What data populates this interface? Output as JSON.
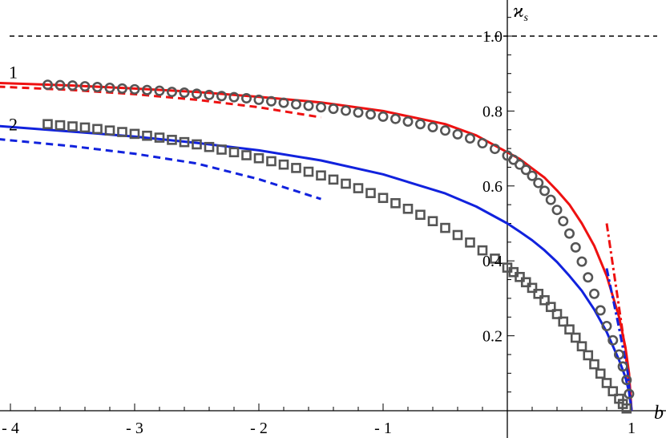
{
  "chart_data": {
    "type": "line",
    "title": "",
    "xlabel": "b",
    "ylabel": "ϰ_s",
    "xlim": [
      -4.05,
      1.1
    ],
    "ylim": [
      0,
      1.05
    ],
    "x_ticks": [
      {
        "value": -4,
        "label": "- 4"
      },
      {
        "value": -3,
        "label": "- 3"
      },
      {
        "value": -2,
        "label": "- 2"
      },
      {
        "value": -1,
        "label": "- 1"
      },
      {
        "value": 1,
        "label": "1"
      }
    ],
    "y_ticks": [
      {
        "value": 0.2,
        "label": "0.2"
      },
      {
        "value": 0.4,
        "label": "0.4"
      },
      {
        "value": 0.6,
        "label": "0.6"
      },
      {
        "value": 0.8,
        "label": "0.8"
      },
      {
        "value": 1.0,
        "label": "1.0"
      }
    ],
    "curve_labels": [
      {
        "text": "1",
        "x": -4,
        "y": 0.905
      },
      {
        "text": "2",
        "x": -4,
        "y": 0.765
      }
    ],
    "reference_line": {
      "y": 1.0,
      "style": "dashed",
      "color": "#000000"
    },
    "series": [
      {
        "style": "solid",
        "color": "#ee1111",
        "x": [
          -4.1,
          -3.5,
          -3.0,
          -2.5,
          -2.0,
          -1.5,
          -1.0,
          -0.5,
          -0.25,
          0.0,
          0.1,
          0.2,
          0.3,
          0.4,
          0.5,
          0.6,
          0.7,
          0.8,
          0.9,
          0.95,
          0.98,
          1.0
        ],
        "y": [
          0.875,
          0.868,
          0.86,
          0.851,
          0.838,
          0.823,
          0.8,
          0.765,
          0.735,
          0.69,
          0.672,
          0.647,
          0.622,
          0.588,
          0.55,
          0.5,
          0.44,
          0.36,
          0.25,
          0.17,
          0.1,
          0.0
        ]
      },
      {
        "style": "dashed",
        "color": "#ee1111",
        "x": [
          -4.1,
          -3.5,
          -3.0,
          -2.5,
          -2.0,
          -1.5
        ],
        "y": [
          0.865,
          0.856,
          0.845,
          0.83,
          0.81,
          0.783
        ]
      },
      {
        "style": "dashdot",
        "color": "#ee1111",
        "x": [
          0.8,
          0.88,
          0.95,
          1.0
        ],
        "y": [
          0.5,
          0.32,
          0.16,
          0.0
        ]
      },
      {
        "style": "solid",
        "color": "#1122dd",
        "x": [
          -4.1,
          -3.5,
          -3.0,
          -2.5,
          -2.0,
          -1.5,
          -1.0,
          -0.5,
          -0.25,
          0.0,
          0.1,
          0.2,
          0.3,
          0.4,
          0.5,
          0.6,
          0.7,
          0.8,
          0.9,
          0.95,
          0.98,
          1.0
        ],
        "y": [
          0.76,
          0.745,
          0.732,
          0.715,
          0.695,
          0.668,
          0.631,
          0.58,
          0.545,
          0.5,
          0.478,
          0.455,
          0.428,
          0.397,
          0.36,
          0.32,
          0.27,
          0.21,
          0.135,
          0.09,
          0.05,
          0.0
        ]
      },
      {
        "style": "dashed",
        "color": "#1122dd",
        "x": [
          -4.1,
          -3.5,
          -3.0,
          -2.5,
          -2.0,
          -1.5
        ],
        "y": [
          0.725,
          0.706,
          0.686,
          0.66,
          0.618,
          0.565
        ]
      },
      {
        "style": "dashdot",
        "color": "#1122dd",
        "x": [
          0.8,
          0.9,
          0.97,
          1.0
        ],
        "y": [
          0.38,
          0.22,
          0.1,
          0.0
        ]
      },
      {
        "style": "markers",
        "marker": "circle",
        "color": "#555555",
        "x": [
          -3.7,
          -3.6,
          -3.5,
          -3.4,
          -3.3,
          -3.2,
          -3.1,
          -3.0,
          -2.9,
          -2.8,
          -2.7,
          -2.6,
          -2.5,
          -2.4,
          -2.3,
          -2.2,
          -2.1,
          -2.0,
          -1.9,
          -1.8,
          -1.7,
          -1.6,
          -1.5,
          -1.4,
          -1.3,
          -1.2,
          -1.1,
          -1.0,
          -0.9,
          -0.8,
          -0.7,
          -0.6,
          -0.5,
          -0.4,
          -0.3,
          -0.2,
          -0.1,
          0.0,
          0.05,
          0.1,
          0.15,
          0.2,
          0.25,
          0.3,
          0.35,
          0.4,
          0.45,
          0.5,
          0.55,
          0.6,
          0.65,
          0.7,
          0.75,
          0.8,
          0.85,
          0.9,
          0.93,
          0.96,
          0.98
        ],
        "y": [
          0.87,
          0.869,
          0.868,
          0.866,
          0.864,
          0.862,
          0.86,
          0.858,
          0.856,
          0.854,
          0.851,
          0.849,
          0.846,
          0.843,
          0.84,
          0.837,
          0.834,
          0.83,
          0.826,
          0.822,
          0.818,
          0.814,
          0.81,
          0.806,
          0.801,
          0.796,
          0.791,
          0.785,
          0.779,
          0.772,
          0.765,
          0.757,
          0.748,
          0.738,
          0.727,
          0.714,
          0.699,
          0.681,
          0.67,
          0.657,
          0.643,
          0.627,
          0.608,
          0.587,
          0.563,
          0.536,
          0.506,
          0.473,
          0.436,
          0.398,
          0.356,
          0.312,
          0.268,
          0.226,
          0.188,
          0.15,
          0.118,
          0.082,
          0.045
        ]
      },
      {
        "style": "markers",
        "marker": "square",
        "color": "#555555",
        "x": [
          -3.7,
          -3.6,
          -3.5,
          -3.4,
          -3.3,
          -3.2,
          -3.1,
          -3.0,
          -2.9,
          -2.8,
          -2.7,
          -2.6,
          -2.5,
          -2.4,
          -2.3,
          -2.2,
          -2.1,
          -2.0,
          -1.9,
          -1.8,
          -1.7,
          -1.6,
          -1.5,
          -1.4,
          -1.3,
          -1.2,
          -1.1,
          -1.0,
          -0.9,
          -0.8,
          -0.7,
          -0.6,
          -0.5,
          -0.4,
          -0.3,
          -0.2,
          -0.1,
          0.0,
          0.05,
          0.1,
          0.15,
          0.2,
          0.25,
          0.3,
          0.35,
          0.4,
          0.45,
          0.5,
          0.55,
          0.6,
          0.65,
          0.7,
          0.75,
          0.8,
          0.85,
          0.9,
          0.93,
          0.96
        ],
        "y": [
          0.765,
          0.762,
          0.759,
          0.756,
          0.752,
          0.748,
          0.744,
          0.739,
          0.734,
          0.729,
          0.723,
          0.717,
          0.711,
          0.704,
          0.697,
          0.69,
          0.682,
          0.674,
          0.666,
          0.657,
          0.648,
          0.638,
          0.628,
          0.617,
          0.606,
          0.594,
          0.581,
          0.568,
          0.554,
          0.539,
          0.523,
          0.506,
          0.488,
          0.469,
          0.449,
          0.428,
          0.406,
          0.382,
          0.37,
          0.357,
          0.343,
          0.328,
          0.312,
          0.295,
          0.277,
          0.258,
          0.238,
          0.217,
          0.195,
          0.172,
          0.148,
          0.124,
          0.099,
          0.074,
          0.052,
          0.032,
          0.018,
          0.006
        ]
      }
    ]
  }
}
